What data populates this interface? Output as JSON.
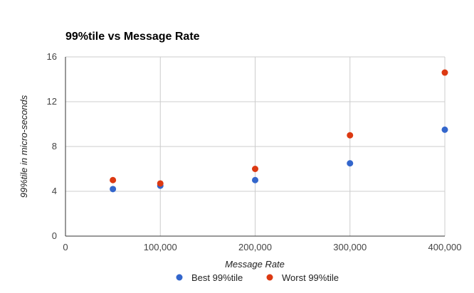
{
  "chart_data": {
    "type": "scatter",
    "title": "99%tile vs Message Rate",
    "xlabel": "Message Rate",
    "ylabel": "99%tile in micro-seconds",
    "xlim": [
      0,
      400000
    ],
    "ylim": [
      0,
      16
    ],
    "x_ticks": [
      0,
      100000,
      200000,
      300000,
      400000
    ],
    "x_tick_labels": [
      "0",
      "100,000",
      "200,000",
      "300,000",
      "400,000"
    ],
    "y_ticks": [
      0,
      4,
      8,
      12,
      16
    ],
    "y_tick_labels": [
      "0",
      "4",
      "8",
      "12",
      "16"
    ],
    "grid": true,
    "legend_position": "bottom",
    "series": [
      {
        "name": "Best 99%tile",
        "color": "#3366cc",
        "points": [
          {
            "x": 50000,
            "y": 4.2
          },
          {
            "x": 100000,
            "y": 4.5
          },
          {
            "x": 200000,
            "y": 5.0
          },
          {
            "x": 300000,
            "y": 6.5
          },
          {
            "x": 400000,
            "y": 9.5
          }
        ]
      },
      {
        "name": "Worst 99%tile",
        "color": "#dc3912",
        "points": [
          {
            "x": 50000,
            "y": 5.0
          },
          {
            "x": 100000,
            "y": 4.7
          },
          {
            "x": 200000,
            "y": 6.0
          },
          {
            "x": 300000,
            "y": 9.0
          },
          {
            "x": 400000,
            "y": 14.6
          }
        ]
      }
    ]
  }
}
